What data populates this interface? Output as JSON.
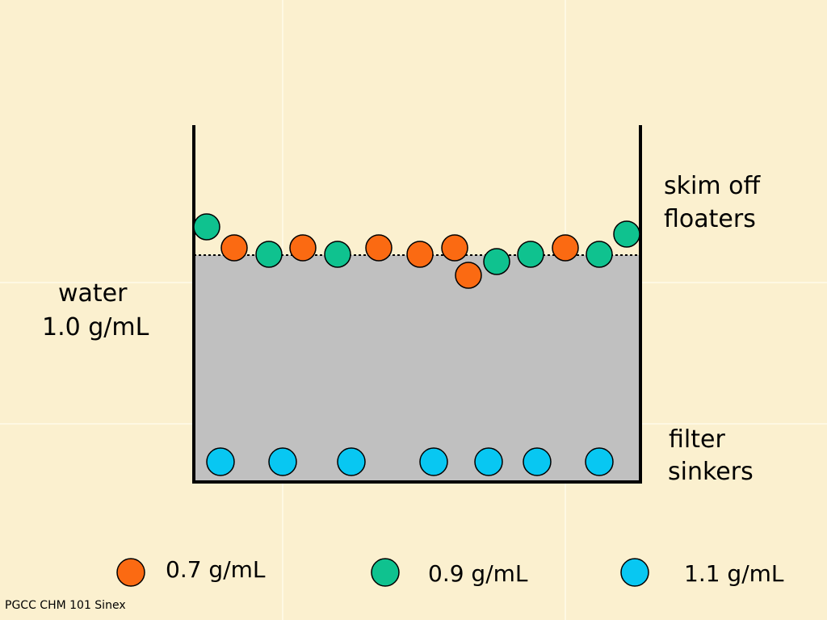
{
  "labels": {
    "water_line1": "water",
    "water_line2": "1.0 g/mL",
    "skim_line1": "skim off",
    "skim_line2": "floaters",
    "filter_line1": "filter",
    "filter_line2": "sinkers"
  },
  "legend": [
    {
      "label": "0.7 g/mL",
      "color": "#fb6a12",
      "name": "orange"
    },
    {
      "label": "0.9 g/mL",
      "color": "#0fc28f",
      "name": "green"
    },
    {
      "label": "1.1 g/mL",
      "color": "#08c7f2",
      "name": "blue"
    }
  ],
  "colors": {
    "background": "#fbf0cf",
    "water": "#c0c0c0",
    "container": "#000000"
  },
  "footer": "PGCC CHM 101 Sinex"
}
